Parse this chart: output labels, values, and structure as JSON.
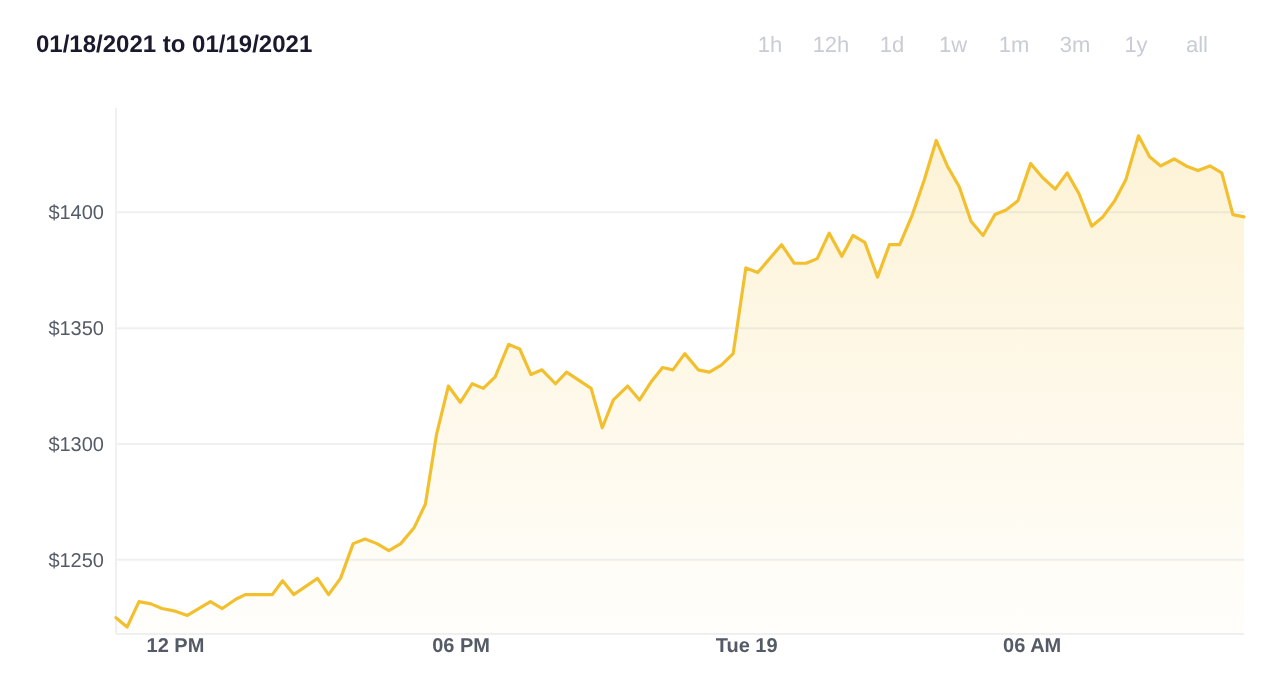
{
  "chart_data": {
    "type": "area",
    "title": "01/18/2021 to 01/19/2021",
    "annotations": [
      "1h",
      "12h",
      "1d",
      "1w",
      "1m",
      "3m",
      "1y",
      "all"
    ],
    "x": [
      "2021-01-18T10:45",
      "2021-01-18T10:59",
      "2021-01-18T11:14",
      "2021-01-18T11:29",
      "2021-01-18T11:43",
      "2021-01-18T11:58",
      "2021-01-18T12:15",
      "2021-01-18T12:44",
      "2021-01-18T12:59",
      "2021-01-18T13:16",
      "2021-01-18T13:28",
      "2021-01-18T13:49",
      "2021-01-18T14:02",
      "2021-01-18T14:15",
      "2021-01-18T14:29",
      "2021-01-18T14:59",
      "2021-01-18T15:13",
      "2021-01-18T15:28",
      "2021-01-18T15:44",
      "2021-01-18T15:59",
      "2021-01-18T16:14",
      "2021-01-18T16:29",
      "2021-01-18T16:44",
      "2021-01-18T17:01",
      "2021-01-18T17:15",
      "2021-01-18T17:29",
      "2021-01-18T17:44",
      "2021-01-18T17:59",
      "2021-01-18T18:14",
      "2021-01-18T18:28",
      "2021-01-18T18:43",
      "2021-01-18T19:00",
      "2021-01-18T19:14",
      "2021-01-18T19:28",
      "2021-01-18T19:42",
      "2021-01-18T19:59",
      "2021-01-18T20:13",
      "2021-01-18T20:44",
      "2021-01-18T20:58",
      "2021-01-18T21:12",
      "2021-01-18T21:30",
      "2021-01-18T21:45",
      "2021-01-18T22:00",
      "2021-01-18T22:14",
      "2021-01-18T22:27",
      "2021-01-18T22:42",
      "2021-01-18T22:59",
      "2021-01-18T23:13",
      "2021-01-18T23:28",
      "2021-01-18T23:43",
      "2021-01-18T23:59",
      "2021-01-19T00:14",
      "2021-01-19T00:44",
      "2021-01-19T01:00",
      "2021-01-19T01:15",
      "2021-01-19T01:29",
      "2021-01-19T01:44",
      "2021-01-19T02:00",
      "2021-01-19T02:14",
      "2021-01-19T02:29",
      "2021-01-19T02:45",
      "2021-01-19T03:00",
      "2021-01-19T03:13",
      "2021-01-19T03:29",
      "2021-01-19T03:44",
      "2021-01-19T03:59",
      "2021-01-19T04:13",
      "2021-01-19T04:28",
      "2021-01-19T04:43",
      "2021-01-19T04:58",
      "2021-01-19T05:13",
      "2021-01-19T05:27",
      "2021-01-19T05:42",
      "2021-01-19T05:58",
      "2021-01-19T06:13",
      "2021-01-19T06:29",
      "2021-01-19T06:44",
      "2021-01-19T06:59",
      "2021-01-19T07:15",
      "2021-01-19T07:29",
      "2021-01-19T07:44",
      "2021-01-19T07:58",
      "2021-01-19T08:14",
      "2021-01-19T08:28",
      "2021-01-19T08:42",
      "2021-01-19T08:59",
      "2021-01-19T09:14",
      "2021-01-19T09:29",
      "2021-01-19T09:44",
      "2021-01-19T09:59",
      "2021-01-19T10:13",
      "2021-01-19T10:27"
    ],
    "values": [
      1225,
      1221,
      1232,
      1231,
      1229,
      1228,
      1226,
      1232,
      1229,
      1233,
      1235,
      1235,
      1235,
      1241,
      1235,
      1242,
      1235,
      1242,
      1257,
      1259,
      1257,
      1254,
      1257,
      1264,
      1274,
      1304,
      1325,
      1318,
      1326,
      1324,
      1329,
      1343,
      1341,
      1330,
      1332,
      1326,
      1331,
      1324,
      1307,
      1319,
      1325,
      1319,
      1327,
      1333,
      1332,
      1339,
      1332,
      1331,
      1334,
      1339,
      1376,
      1374,
      1386,
      1378,
      1378,
      1380,
      1391,
      1381,
      1390,
      1387,
      1372,
      1386,
      1386,
      1399,
      1414,
      1431,
      1420,
      1411,
      1396,
      1390,
      1399,
      1401,
      1405,
      1421,
      1415,
      1410,
      1417,
      1408,
      1394,
      1398,
      1405,
      1414,
      1433,
      1424,
      1420,
      1423,
      1420,
      1418,
      1420,
      1417,
      1399,
      1398
    ],
    "color": "#f2c02f",
    "xlim": [
      "2021-01-18T10:45",
      "2021-01-19T10:27"
    ],
    "ylim": [
      1218,
      1445
    ],
    "xticks": [
      {
        "value": "2021-01-18T12:00",
        "label": "12 PM"
      },
      {
        "value": "2021-01-18T18:00",
        "label": "06 PM"
      },
      {
        "value": "2021-01-19T00:00",
        "label": "Tue 19"
      },
      {
        "value": "2021-01-19T06:00",
        "label": "06 AM"
      }
    ],
    "yticks": [
      {
        "value": 1250,
        "label": "$1250"
      },
      {
        "value": 1300,
        "label": "$1300"
      },
      {
        "value": 1350,
        "label": "$1350"
      },
      {
        "value": 1400,
        "label": "$1400"
      }
    ],
    "grid": "y"
  }
}
